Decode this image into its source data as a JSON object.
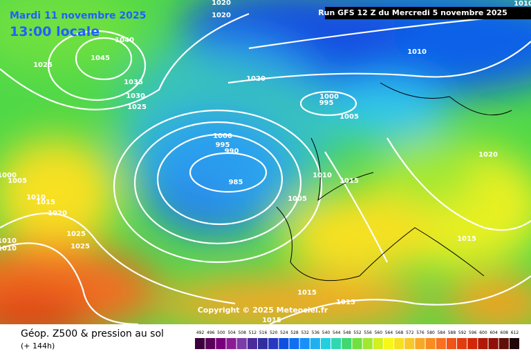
{
  "header": {
    "date": "Mardi 11 novembre 2025",
    "time": "13:00 locale",
    "run": "Run GFS 12 Z du Mercredi 5 novembre 2025",
    "corner": "1010"
  },
  "isobar_labels": [
    "1020",
    "1020",
    "1040",
    "1045",
    "1025",
    "1035",
    "1030",
    "1025",
    "1020",
    "1000",
    "995",
    "1005",
    "1010",
    "1000",
    "995",
    "990",
    "985",
    "1010",
    "1015",
    "1005",
    "1020",
    "1015",
    "1000",
    "1005",
    "1010",
    "1015",
    "1020",
    "1025",
    "1025",
    "1010",
    "1010",
    "1015",
    "1015",
    "1015"
  ],
  "copyright": "Copyright © 2025 Meteociel.fr",
  "footer": {
    "title": "Géop. Z500 & pression au sol",
    "subtitle": "(+ 144h)"
  },
  "legend": {
    "labels": [
      "492",
      "496",
      "500",
      "504",
      "508",
      "512",
      "516",
      "520",
      "524",
      "528",
      "532",
      "536",
      "540",
      "544",
      "548",
      "552",
      "556",
      "560",
      "564",
      "568",
      "572",
      "576",
      "580",
      "584",
      "588",
      "592",
      "596",
      "600",
      "604",
      "608",
      "612"
    ],
    "colors": [
      "#3c003c",
      "#5a005a",
      "#78007a",
      "#8c1c96",
      "#7a3ca8",
      "#4a2c9c",
      "#30309c",
      "#2838c0",
      "#1050e0",
      "#1070f0",
      "#1890f8",
      "#20b0f0",
      "#20d0e0",
      "#30d8b0",
      "#40d870",
      "#70e040",
      "#a0e830",
      "#d0f020",
      "#f8f818",
      "#f8e020",
      "#f8c828",
      "#f8a828",
      "#f88c20",
      "#f87020",
      "#f05418",
      "#e03c10",
      "#d02808",
      "#b01808",
      "#901008",
      "#601008",
      "#200808"
    ]
  }
}
